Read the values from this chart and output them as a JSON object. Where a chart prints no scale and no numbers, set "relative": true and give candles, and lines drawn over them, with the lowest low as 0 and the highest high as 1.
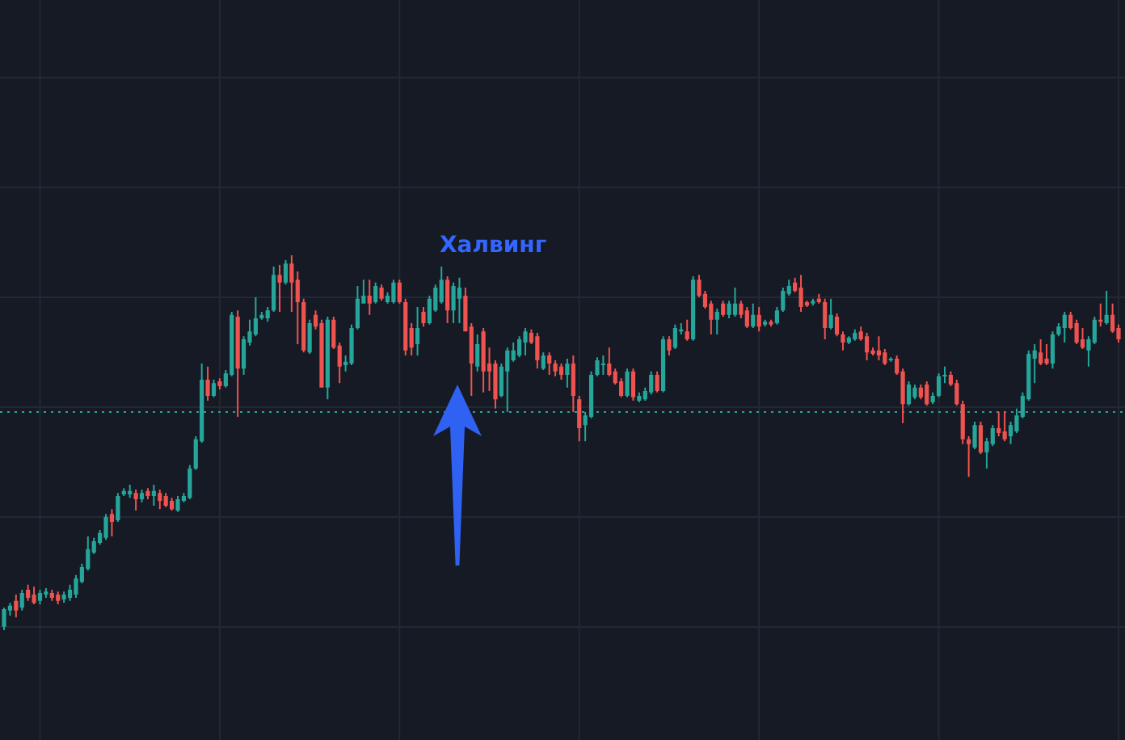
{
  "chart_data": {
    "type": "candlestick",
    "relative": true,
    "grid": true,
    "categories": [
      null,
      null,
      null,
      null,
      null,
      null,
      null,
      null,
      null,
      null,
      null,
      null,
      null,
      null,
      null,
      null,
      null,
      null,
      null,
      null,
      null,
      null,
      null,
      null,
      null,
      null,
      null,
      null,
      null,
      null,
      null,
      null,
      null,
      null,
      null,
      null,
      null,
      null,
      null,
      null,
      null,
      null,
      null,
      null,
      null,
      null,
      null,
      null,
      null,
      null,
      null,
      null,
      null,
      null,
      null,
      null,
      null,
      null,
      null,
      null,
      null,
      null,
      null,
      null,
      null,
      null,
      null,
      null,
      null,
      null,
      null,
      null,
      null,
      null,
      null,
      null,
      null,
      null,
      null,
      null,
      null,
      null,
      null,
      null,
      null,
      null,
      null,
      null,
      null,
      null,
      null,
      null,
      null,
      null,
      null,
      null,
      null,
      null,
      null,
      null,
      null,
      null,
      null,
      null,
      null,
      null,
      null,
      null,
      null,
      null,
      null,
      null,
      null,
      null,
      null,
      null,
      null,
      null,
      null,
      null,
      null,
      null,
      null,
      null,
      null,
      null,
      null,
      null,
      null,
      null,
      null,
      null,
      null,
      null,
      null,
      null,
      null,
      null,
      null,
      null,
      null,
      null,
      null,
      null,
      null,
      null,
      null,
      null,
      null,
      null,
      null,
      null,
      null,
      null,
      null,
      null,
      null,
      null,
      null,
      null,
      null,
      null,
      null,
      null,
      null,
      null,
      null,
      null,
      null,
      null,
      null,
      null,
      null,
      null,
      null,
      null,
      null,
      null,
      null,
      null,
      null,
      null,
      null,
      null,
      null,
      null,
      null
    ],
    "ohlc": [
      [
        0.009,
        0.06,
        0,
        0.056
      ],
      [
        0.052,
        0.073,
        0.039,
        0.065
      ],
      [
        0.078,
        0.095,
        0.034,
        0.052
      ],
      [
        0.06,
        0.108,
        0.052,
        0.099
      ],
      [
        0.108,
        0.121,
        0.078,
        0.086
      ],
      [
        0.095,
        0.116,
        0.069,
        0.073
      ],
      [
        0.078,
        0.108,
        0.069,
        0.099
      ],
      [
        0.095,
        0.112,
        0.086,
        0.103
      ],
      [
        0.099,
        0.108,
        0.078,
        0.086
      ],
      [
        0.095,
        0.103,
        0.069,
        0.078
      ],
      [
        0.082,
        0.103,
        0.073,
        0.095
      ],
      [
        0.086,
        0.121,
        0.078,
        0.108
      ],
      [
        0.095,
        0.147,
        0.086,
        0.138
      ],
      [
        0.129,
        0.177,
        0.125,
        0.168
      ],
      [
        0.164,
        0.25,
        0.159,
        0.216
      ],
      [
        0.207,
        0.246,
        0.203,
        0.237
      ],
      [
        0.233,
        0.267,
        0.228,
        0.259
      ],
      [
        0.246,
        0.31,
        0.241,
        0.302
      ],
      [
        0.31,
        0.323,
        0.25,
        0.289
      ],
      [
        0.293,
        0.366,
        0.289,
        0.358
      ],
      [
        0.362,
        0.379,
        0.358,
        0.371
      ],
      [
        0.362,
        0.388,
        0.353,
        0.371
      ],
      [
        0.366,
        0.375,
        0.319,
        0.349
      ],
      [
        0.349,
        0.375,
        0.341,
        0.366
      ],
      [
        0.371,
        0.379,
        0.349,
        0.358
      ],
      [
        0.358,
        0.388,
        0.332,
        0.371
      ],
      [
        0.366,
        0.375,
        0.323,
        0.345
      ],
      [
        0.358,
        0.366,
        0.328,
        0.332
      ],
      [
        0.345,
        0.353,
        0.319,
        0.323
      ],
      [
        0.319,
        0.358,
        0.315,
        0.349
      ],
      [
        0.345,
        0.366,
        0.341,
        0.358
      ],
      [
        0.353,
        0.44,
        0.349,
        0.431
      ],
      [
        0.431,
        0.517,
        0.427,
        0.509
      ],
      [
        0.504,
        0.711,
        0.5,
        0.668
      ],
      [
        0.668,
        0.703,
        0.612,
        0.625
      ],
      [
        0.625,
        0.668,
        0.621,
        0.659
      ],
      [
        0.664,
        0.672,
        0.642,
        0.651
      ],
      [
        0.651,
        0.694,
        0.647,
        0.685
      ],
      [
        0.681,
        0.849,
        0.677,
        0.841
      ],
      [
        0.836,
        0.853,
        0.569,
        0.698
      ],
      [
        0.698,
        0.784,
        0.681,
        0.776
      ],
      [
        0.767,
        0.828,
        0.759,
        0.797
      ],
      [
        0.789,
        0.888,
        0.784,
        0.832
      ],
      [
        0.832,
        0.849,
        0.828,
        0.841
      ],
      [
        0.832,
        0.862,
        0.823,
        0.853
      ],
      [
        0.853,
        0.97,
        0.849,
        0.948
      ],
      [
        0.948,
        0.974,
        0.849,
        0.927
      ],
      [
        0.927,
        0.987,
        0.922,
        0.978
      ],
      [
        0.978,
        1,
        0.849,
        0.927
      ],
      [
        0.935,
        0.957,
        0.763,
        0.875
      ],
      [
        0.875,
        0.884,
        0.741,
        0.746
      ],
      [
        0.741,
        0.828,
        0.737,
        0.819
      ],
      [
        0.841,
        0.853,
        0.802,
        0.81
      ],
      [
        0.819,
        0.828,
        0.647,
        0.647
      ],
      [
        0.647,
        0.836,
        0.616,
        0.828
      ],
      [
        0.828,
        0.836,
        0.75,
        0.754
      ],
      [
        0.759,
        0.767,
        0.659,
        0.703
      ],
      [
        0.707,
        0.733,
        0.69,
        0.716
      ],
      [
        0.711,
        0.815,
        0.707,
        0.806
      ],
      [
        0.806,
        0.918,
        0.802,
        0.884
      ],
      [
        0.871,
        0.935,
        0.871,
        0.892
      ],
      [
        0.892,
        0.935,
        0.841,
        0.871
      ],
      [
        0.875,
        0.927,
        0.871,
        0.918
      ],
      [
        0.914,
        0.922,
        0.879,
        0.884
      ],
      [
        0.875,
        0.901,
        0.871,
        0.892
      ],
      [
        0.875,
        0.935,
        0.871,
        0.927
      ],
      [
        0.927,
        0.935,
        0.871,
        0.875
      ],
      [
        0.875,
        0.884,
        0.733,
        0.746
      ],
      [
        0.806,
        0.819,
        0.733,
        0.754
      ],
      [
        0.763,
        0.862,
        0.733,
        0.806
      ],
      [
        0.849,
        0.862,
        0.81,
        0.819
      ],
      [
        0.819,
        0.892,
        0.815,
        0.884
      ],
      [
        0.853,
        0.922,
        0.849,
        0.914
      ],
      [
        0.875,
        0.97,
        0.871,
        0.935
      ],
      [
        0.935,
        0.944,
        0.819,
        0.853
      ],
      [
        0.853,
        0.927,
        0.819,
        0.918
      ],
      [
        0.884,
        0.94,
        0.819,
        0.914
      ],
      [
        0.892,
        0.914,
        0.797,
        0.797
      ],
      [
        0.81,
        0.819,
        0.625,
        0.711
      ],
      [
        0.703,
        0.789,
        0.69,
        0.763
      ],
      [
        0.797,
        0.806,
        0.634,
        0.69
      ],
      [
        0.711,
        0.754,
        0.638,
        0.69
      ],
      [
        0.711,
        0.72,
        0.591,
        0.616
      ],
      [
        0.625,
        0.711,
        0.621,
        0.703
      ],
      [
        0.69,
        0.754,
        0.582,
        0.746
      ],
      [
        0.72,
        0.767,
        0.716,
        0.746
      ],
      [
        0.733,
        0.784,
        0.728,
        0.776
      ],
      [
        0.767,
        0.806,
        0.733,
        0.797
      ],
      [
        0.793,
        0.802,
        0.763,
        0.767
      ],
      [
        0.784,
        0.793,
        0.698,
        0.72
      ],
      [
        0.698,
        0.741,
        0.694,
        0.733
      ],
      [
        0.733,
        0.741,
        0.681,
        0.711
      ],
      [
        0.711,
        0.72,
        0.677,
        0.69
      ],
      [
        0.703,
        0.711,
        0.668,
        0.681
      ],
      [
        0.681,
        0.724,
        0.647,
        0.711
      ],
      [
        0.711,
        0.733,
        0.582,
        0.625
      ],
      [
        0.616,
        0.625,
        0.504,
        0.539
      ],
      [
        0.547,
        0.582,
        0.504,
        0.573
      ],
      [
        0.569,
        0.69,
        0.565,
        0.681
      ],
      [
        0.681,
        0.728,
        0.677,
        0.72
      ],
      [
        0.707,
        0.733,
        0.681,
        0.711
      ],
      [
        0.711,
        0.754,
        0.677,
        0.681
      ],
      [
        0.69,
        0.698,
        0.655,
        0.659
      ],
      [
        0.664,
        0.672,
        0.621,
        0.625
      ],
      [
        0.625,
        0.698,
        0.621,
        0.69
      ],
      [
        0.69,
        0.698,
        0.612,
        0.621
      ],
      [
        0.612,
        0.634,
        0.608,
        0.625
      ],
      [
        0.616,
        0.647,
        0.612,
        0.638
      ],
      [
        0.634,
        0.69,
        0.629,
        0.681
      ],
      [
        0.681,
        0.69,
        0.634,
        0.638
      ],
      [
        0.638,
        0.784,
        0.634,
        0.776
      ],
      [
        0.776,
        0.784,
        0.733,
        0.746
      ],
      [
        0.754,
        0.815,
        0.75,
        0.806
      ],
      [
        0.797,
        0.819,
        0.789,
        0.802
      ],
      [
        0.797,
        0.828,
        0.772,
        0.776
      ],
      [
        0.776,
        0.944,
        0.772,
        0.935
      ],
      [
        0.935,
        0.948,
        0.888,
        0.892
      ],
      [
        0.897,
        0.905,
        0.858,
        0.862
      ],
      [
        0.871,
        0.879,
        0.789,
        0.828
      ],
      [
        0.828,
        0.858,
        0.789,
        0.849
      ],
      [
        0.871,
        0.879,
        0.836,
        0.841
      ],
      [
        0.841,
        0.879,
        0.832,
        0.871
      ],
      [
        0.841,
        0.914,
        0.836,
        0.871
      ],
      [
        0.871,
        0.879,
        0.832,
        0.841
      ],
      [
        0.853,
        0.862,
        0.806,
        0.81
      ],
      [
        0.81,
        0.871,
        0.806,
        0.841
      ],
      [
        0.841,
        0.862,
        0.797,
        0.81
      ],
      [
        0.815,
        0.828,
        0.81,
        0.823
      ],
      [
        0.823,
        0.828,
        0.81,
        0.815
      ],
      [
        0.819,
        0.862,
        0.815,
        0.853
      ],
      [
        0.853,
        0.914,
        0.849,
        0.905
      ],
      [
        0.897,
        0.935,
        0.892,
        0.918
      ],
      [
        0.927,
        0.94,
        0.901,
        0.905
      ],
      [
        0.914,
        0.948,
        0.849,
        0.862
      ],
      [
        0.875,
        0.879,
        0.862,
        0.866
      ],
      [
        0.871,
        0.884,
        0.866,
        0.879
      ],
      [
        0.884,
        0.897,
        0.871,
        0.875
      ],
      [
        0.875,
        0.884,
        0.776,
        0.806
      ],
      [
        0.806,
        0.884,
        0.802,
        0.841
      ],
      [
        0.836,
        0.845,
        0.784,
        0.789
      ],
      [
        0.789,
        0.797,
        0.746,
        0.767
      ],
      [
        0.767,
        0.784,
        0.763,
        0.78
      ],
      [
        0.776,
        0.802,
        0.772,
        0.793
      ],
      [
        0.797,
        0.81,
        0.772,
        0.776
      ],
      [
        0.784,
        0.793,
        0.72,
        0.741
      ],
      [
        0.746,
        0.754,
        0.733,
        0.737
      ],
      [
        0.746,
        0.784,
        0.72,
        0.733
      ],
      [
        0.741,
        0.75,
        0.707,
        0.711
      ],
      [
        0.72,
        0.728,
        0.716,
        0.724
      ],
      [
        0.724,
        0.733,
        0.681,
        0.685
      ],
      [
        0.69,
        0.698,
        0.552,
        0.603
      ],
      [
        0.603,
        0.664,
        0.599,
        0.655
      ],
      [
        0.621,
        0.655,
        0.616,
        0.647
      ],
      [
        0.647,
        0.655,
        0.616,
        0.621
      ],
      [
        0.655,
        0.664,
        0.599,
        0.603
      ],
      [
        0.608,
        0.634,
        0.603,
        0.625
      ],
      [
        0.625,
        0.685,
        0.621,
        0.677
      ],
      [
        0.677,
        0.703,
        0.659,
        0.681
      ],
      [
        0.681,
        0.69,
        0.651,
        0.655
      ],
      [
        0.659,
        0.668,
        0.599,
        0.603
      ],
      [
        0.603,
        0.612,
        0.496,
        0.509
      ],
      [
        0.509,
        0.517,
        0.409,
        0.496
      ],
      [
        0.487,
        0.556,
        0.483,
        0.547
      ],
      [
        0.547,
        0.556,
        0.47,
        0.474
      ],
      [
        0.474,
        0.513,
        0.431,
        0.504
      ],
      [
        0.496,
        0.547,
        0.491,
        0.539
      ],
      [
        0.539,
        0.582,
        0.517,
        0.526
      ],
      [
        0.53,
        0.582,
        0.504,
        0.509
      ],
      [
        0.517,
        0.556,
        0.496,
        0.547
      ],
      [
        0.53,
        0.591,
        0.526,
        0.573
      ],
      [
        0.569,
        0.634,
        0.565,
        0.625
      ],
      [
        0.616,
        0.746,
        0.612,
        0.737
      ],
      [
        0.724,
        0.763,
        0.659,
        0.746
      ],
      [
        0.741,
        0.776,
        0.707,
        0.711
      ],
      [
        0.724,
        0.763,
        0.707,
        0.711
      ],
      [
        0.711,
        0.797,
        0.698,
        0.789
      ],
      [
        0.789,
        0.819,
        0.784,
        0.81
      ],
      [
        0.806,
        0.849,
        0.767,
        0.841
      ],
      [
        0.841,
        0.849,
        0.802,
        0.806
      ],
      [
        0.819,
        0.828,
        0.763,
        0.767
      ],
      [
        0.776,
        0.806,
        0.75,
        0.754
      ],
      [
        0.746,
        0.784,
        0.703,
        0.776
      ],
      [
        0.767,
        0.836,
        0.763,
        0.828
      ],
      [
        0.828,
        0.871,
        0.81,
        0.823
      ],
      [
        0.819,
        0.905,
        0.815,
        0.841
      ],
      [
        0.841,
        0.871,
        0.793,
        0.797
      ],
      [
        0.806,
        0.815,
        0.767,
        0.776
      ]
    ],
    "colors": [
      "#26a69a",
      "#26a69a",
      "#ef5350",
      "#26a69a",
      "#ef5350",
      "#ef5350",
      "#26a69a",
      "#26a69a",
      "#ef5350",
      "#ef5350",
      "#26a69a",
      "#26a69a",
      "#26a69a",
      "#26a69a",
      "#26a69a",
      "#26a69a",
      "#26a69a",
      "#26a69a",
      "#ef5350",
      "#26a69a",
      "#26a69a",
      "#26a69a",
      "#ef5350",
      "#26a69a",
      "#ef5350",
      "#26a69a",
      "#ef5350",
      "#ef5350",
      "#ef5350",
      "#26a69a",
      "#26a69a",
      "#26a69a",
      "#26a69a",
      "#26a69a",
      "#ef5350",
      "#26a69a",
      "#ef5350",
      "#26a69a",
      "#26a69a",
      "#ef5350",
      "#26a69a",
      "#26a69a",
      "#26a69a",
      "#26a69a",
      "#26a69a",
      "#26a69a",
      "#ef5350",
      "#26a69a",
      "#ef5350",
      "#ef5350",
      "#ef5350",
      "#26a69a",
      "#ef5350",
      "#ef5350",
      "#26a69a",
      "#ef5350",
      "#ef5350",
      "#26a69a",
      "#26a69a",
      "#26a69a",
      "#26a69a",
      "#ef5350",
      "#26a69a",
      "#ef5350",
      "#26a69a",
      "#26a69a",
      "#ef5350",
      "#ef5350",
      "#ef5350",
      "#26a69a",
      "#ef5350",
      "#26a69a",
      "#26a69a",
      "#26a69a",
      "#ef5350",
      "#26a69a",
      "#26a69a",
      "#ef5350",
      "#ef5350",
      "#26a69a",
      "#ef5350",
      "#ef5350",
      "#ef5350",
      "#26a69a",
      "#26a69a",
      "#26a69a",
      "#26a69a",
      "#26a69a",
      "#ef5350",
      "#ef5350",
      "#26a69a",
      "#ef5350",
      "#ef5350",
      "#ef5350",
      "#26a69a",
      "#ef5350",
      "#ef5350",
      "#26a69a",
      "#26a69a",
      "#26a69a",
      "#26a69a",
      "#ef5350",
      "#ef5350",
      "#ef5350",
      "#26a69a",
      "#ef5350",
      "#26a69a",
      "#26a69a",
      "#26a69a",
      "#ef5350",
      "#26a69a",
      "#ef5350",
      "#26a69a",
      "#26a69a",
      "#ef5350",
      "#26a69a",
      "#ef5350",
      "#ef5350",
      "#ef5350",
      "#26a69a",
      "#ef5350",
      "#26a69a",
      "#26a69a",
      "#ef5350",
      "#ef5350",
      "#26a69a",
      "#ef5350",
      "#26a69a",
      "#ef5350",
      "#26a69a",
      "#26a69a",
      "#26a69a",
      "#ef5350",
      "#ef5350",
      "#ef5350",
      "#26a69a",
      "#ef5350",
      "#ef5350",
      "#26a69a",
      "#ef5350",
      "#ef5350",
      "#26a69a",
      "#26a69a",
      "#ef5350",
      "#ef5350",
      "#ef5350",
      "#ef5350",
      "#ef5350",
      "#26a69a",
      "#ef5350",
      "#ef5350",
      "#26a69a",
      "#26a69a",
      "#ef5350",
      "#ef5350",
      "#26a69a",
      "#26a69a",
      "#26a69a",
      "#ef5350",
      "#ef5350",
      "#ef5350",
      "#ef5350",
      "#26a69a",
      "#ef5350",
      "#26a69a",
      "#26a69a",
      "#ef5350",
      "#ef5350",
      "#26a69a",
      "#26a69a",
      "#26a69a",
      "#26a69a",
      "#26a69a",
      "#ef5350",
      "#ef5350",
      "#26a69a",
      "#26a69a",
      "#26a69a",
      "#ef5350",
      "#ef5350",
      "#ef5350",
      "#26a69a",
      "#26a69a",
      "#ef5350",
      "#26a69a",
      "#ef5350",
      "#ef5350"
    ],
    "ref_lines": [
      {
        "axis": "y",
        "value": 0.582,
        "color": "#26a69a",
        "line_style": "dotted"
      }
    ],
    "annotations": [
      "Халвинг"
    ]
  }
}
